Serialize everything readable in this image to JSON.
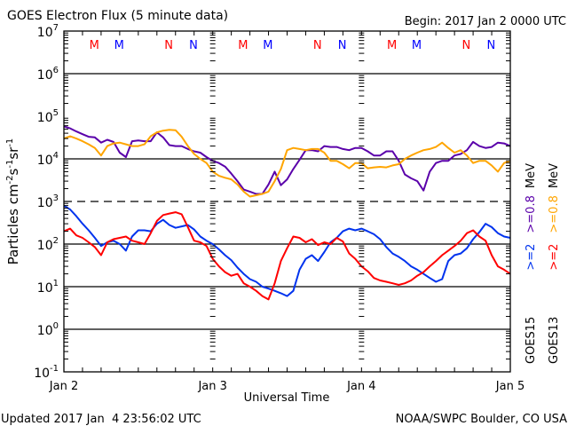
{
  "chart_data": {
    "type": "line",
    "title": "GOES Electron Flux (5 minute data)",
    "begin_label": "Begin: 2017 Jan 2 0000 UTC",
    "xlabel": "Universal Time",
    "ylabel": "Particles cm",
    "ylabel_sup1": "-2",
    "ylabel_mid": "s",
    "ylabel_sup2": "-1",
    "ylabel_mid2": "sr",
    "ylabel_sup3": "-1",
    "x_unit": "hours since 2017 Jan 2 0000 UTC",
    "xlim": [
      0,
      72
    ],
    "ylim": [
      0.1,
      10000000
    ],
    "yscale": "log",
    "x_ticks": [
      {
        "hours": 0,
        "label": "Jan 2"
      },
      {
        "hours": 24,
        "label": "Jan 3"
      },
      {
        "hours": 48,
        "label": "Jan 4"
      },
      {
        "hours": 72,
        "label": "Jan 5"
      }
    ],
    "y_ticks": [
      {
        "exp": 7,
        "base": "10",
        "sup": "7"
      },
      {
        "exp": 6,
        "base": "10",
        "sup": "6"
      },
      {
        "exp": 5,
        "base": "10",
        "sup": "5"
      },
      {
        "exp": 4,
        "base": "10",
        "sup": "4"
      },
      {
        "exp": 3,
        "base": "10",
        "sup": "3"
      },
      {
        "exp": 2,
        "base": "10",
        "sup": "2"
      },
      {
        "exp": 1,
        "base": "10",
        "sup": "1"
      },
      {
        "exp": 0,
        "base": "10",
        "sup": "0"
      },
      {
        "exp": -1,
        "base": "10",
        "sup": "-1"
      }
    ],
    "threshold_lines": [
      {
        "value": 1000,
        "style": "dashed"
      }
    ],
    "reference_lines": [
      1000000,
      10000,
      100,
      10,
      1
    ],
    "markers": [
      {
        "hours": 4.9,
        "label": "M",
        "color": "#ff0000"
      },
      {
        "hours": 8.9,
        "label": "M",
        "color": "#0000ff"
      },
      {
        "hours": 16.9,
        "label": "N",
        "color": "#ff0000"
      },
      {
        "hours": 20.9,
        "label": "N",
        "color": "#0000ff"
      },
      {
        "hours": 28.9,
        "label": "M",
        "color": "#ff0000"
      },
      {
        "hours": 32.9,
        "label": "M",
        "color": "#0000ff"
      },
      {
        "hours": 40.9,
        "label": "N",
        "color": "#ff0000"
      },
      {
        "hours": 44.9,
        "label": "N",
        "color": "#0000ff"
      },
      {
        "hours": 52.9,
        "label": "M",
        "color": "#ff0000"
      },
      {
        "hours": 56.9,
        "label": "M",
        "color": "#0000ff"
      },
      {
        "hours": 64.9,
        "label": "N",
        "color": "#ff0000"
      },
      {
        "hours": 68.9,
        "label": "N",
        "color": "#0000ff"
      }
    ],
    "series": [
      {
        "name": "GOES15 >=0.8 MeV",
        "color": "#5a00aa",
        "x": [
          0,
          1,
          2,
          3,
          4,
          5,
          6,
          7,
          8,
          9,
          10,
          11,
          12,
          13,
          14,
          15,
          16,
          17,
          18,
          19,
          20,
          21,
          22,
          23,
          24,
          25,
          26,
          27,
          28,
          29,
          30,
          31,
          32,
          33,
          34,
          35,
          36,
          37,
          38,
          39,
          40,
          41,
          42,
          43,
          44,
          45,
          46,
          47,
          48,
          49,
          50,
          51,
          52,
          53,
          54,
          55,
          56,
          57,
          58,
          59,
          60,
          61,
          62,
          63,
          64,
          65,
          66,
          67,
          68,
          69,
          70,
          71,
          72
        ],
        "values": [
          58000,
          52000,
          44000,
          38000,
          33000,
          32000,
          24000,
          28000,
          25000,
          14000,
          11000,
          26000,
          27000,
          26000,
          26000,
          42000,
          32000,
          21000,
          20000,
          20000,
          17000,
          15000,
          14000,
          11000,
          9000,
          8000,
          6600,
          4500,
          3000,
          1900,
          1700,
          1500,
          1500,
          2500,
          5000,
          2400,
          3300,
          5800,
          9500,
          16000,
          16000,
          15000,
          20000,
          19000,
          19000,
          17000,
          16000,
          18000,
          18000,
          15000,
          12000,
          12000,
          15000,
          15000,
          9000,
          4300,
          3500,
          3000,
          1800,
          5000,
          8000,
          9000,
          9000,
          12000,
          13000,
          16000,
          25000,
          20000,
          18000,
          19000,
          24000,
          23000,
          20000
        ]
      },
      {
        "name": "GOES13 >=0.8 MeV",
        "color": "#ffa500",
        "x": [
          0,
          1,
          2,
          3,
          4,
          5,
          6,
          7,
          8,
          9,
          10,
          11,
          12,
          13,
          14,
          15,
          16,
          17,
          18,
          19,
          20,
          21,
          22,
          23,
          24,
          25,
          26,
          27,
          28,
          29,
          30,
          31,
          32,
          33,
          34,
          35,
          36,
          37,
          38,
          39,
          40,
          41,
          42,
          43,
          44,
          45,
          46,
          47,
          48,
          49,
          50,
          51,
          52,
          53,
          54,
          55,
          56,
          57,
          58,
          59,
          60,
          61,
          62,
          63,
          64,
          65,
          66,
          67,
          68,
          69,
          70,
          71,
          72
        ],
        "values": [
          30000,
          34000,
          30000,
          26000,
          22000,
          18000,
          12000,
          20000,
          23000,
          24000,
          22000,
          20000,
          20000,
          22000,
          34000,
          42000,
          46000,
          48000,
          47000,
          33000,
          20000,
          13000,
          10000,
          8000,
          5000,
          4000,
          3600,
          3300,
          2500,
          1700,
          1300,
          1400,
          1500,
          1700,
          3000,
          5800,
          16000,
          18000,
          17000,
          16000,
          17000,
          17000,
          14000,
          9000,
          9000,
          7500,
          6000,
          8000,
          8000,
          6000,
          6300,
          6500,
          6300,
          7000,
          7500,
          10000,
          12000,
          14000,
          16000,
          17000,
          19000,
          24000,
          18000,
          14000,
          16000,
          12000,
          8000,
          9000,
          9000,
          7000,
          5000,
          8000,
          9000
        ]
      },
      {
        "name": "GOES15 >=2 MeV",
        "color": "#0033ee",
        "x": [
          0,
          1,
          2,
          3,
          4,
          5,
          6,
          7,
          8,
          9,
          10,
          11,
          12,
          13,
          14,
          15,
          16,
          17,
          18,
          19,
          20,
          21,
          22,
          23,
          24,
          25,
          26,
          27,
          28,
          29,
          30,
          31,
          32,
          33,
          34,
          35,
          36,
          37,
          38,
          39,
          40,
          41,
          42,
          43,
          44,
          45,
          46,
          47,
          48,
          49,
          50,
          51,
          52,
          53,
          54,
          55,
          56,
          57,
          58,
          59,
          60,
          61,
          62,
          63,
          64,
          65,
          66,
          67,
          68,
          69,
          70,
          71,
          72
        ],
        "values": [
          800,
          650,
          450,
          300,
          210,
          140,
          90,
          110,
          120,
          100,
          70,
          150,
          210,
          210,
          200,
          300,
          370,
          280,
          240,
          260,
          280,
          220,
          150,
          120,
          100,
          75,
          55,
          42,
          28,
          20,
          15,
          13,
          10,
          9,
          8,
          7,
          6,
          8,
          25,
          45,
          55,
          40,
          65,
          110,
          140,
          200,
          230,
          210,
          230,
          200,
          170,
          130,
          85,
          60,
          50,
          40,
          30,
          25,
          20,
          16,
          13,
          15,
          40,
          55,
          60,
          80,
          130,
          190,
          300,
          250,
          180,
          150,
          140
        ]
      },
      {
        "name": "GOES13 >=2 MeV",
        "color": "#ff0000",
        "x": [
          0,
          1,
          2,
          3,
          4,
          5,
          6,
          7,
          8,
          9,
          10,
          11,
          12,
          13,
          14,
          15,
          16,
          17,
          18,
          19,
          20,
          21,
          22,
          23,
          24,
          25,
          26,
          27,
          28,
          29,
          30,
          31,
          32,
          33,
          34,
          35,
          36,
          37,
          38,
          39,
          40,
          41,
          42,
          43,
          44,
          45,
          46,
          47,
          48,
          49,
          50,
          51,
          52,
          53,
          54,
          55,
          56,
          57,
          58,
          59,
          60,
          61,
          62,
          63,
          64,
          65,
          66,
          67,
          68,
          69,
          70,
          71,
          72
        ],
        "values": [
          200,
          230,
          160,
          140,
          110,
          85,
          55,
          110,
          130,
          140,
          150,
          120,
          110,
          100,
          180,
          350,
          480,
          520,
          560,
          500,
          250,
          120,
          110,
          90,
          45,
          30,
          22,
          18,
          20,
          12,
          10,
          8,
          6,
          5,
          12,
          40,
          80,
          150,
          140,
          110,
          130,
          95,
          110,
          100,
          140,
          115,
          60,
          45,
          30,
          23,
          16,
          14,
          13,
          12,
          11,
          12,
          14,
          18,
          22,
          30,
          40,
          55,
          70,
          90,
          120,
          180,
          210,
          150,
          120,
          55,
          30,
          25,
          20
        ]
      }
    ],
    "legend": [
      {
        "text": "GOES15",
        "color": "#000000"
      },
      {
        "text": ">=2",
        "color": "#0033ee"
      },
      {
        "text": ">=0.8",
        "color": "#5a00aa"
      },
      {
        "text": "MeV",
        "color": "#000000"
      },
      {
        "text": "GOES13",
        "color": "#000000"
      },
      {
        "text": ">=2",
        "color": "#ff0000"
      },
      {
        "text": ">=0.8",
        "color": "#ffa500"
      },
      {
        "text": "MeV",
        "color": "#000000"
      }
    ],
    "legend_placement": "right, rotated vertical"
  },
  "footer": {
    "updated": "Updated 2017 Jan  4 23:56:02 UTC",
    "source": "NOAA/SWPC Boulder, CO USA"
  }
}
